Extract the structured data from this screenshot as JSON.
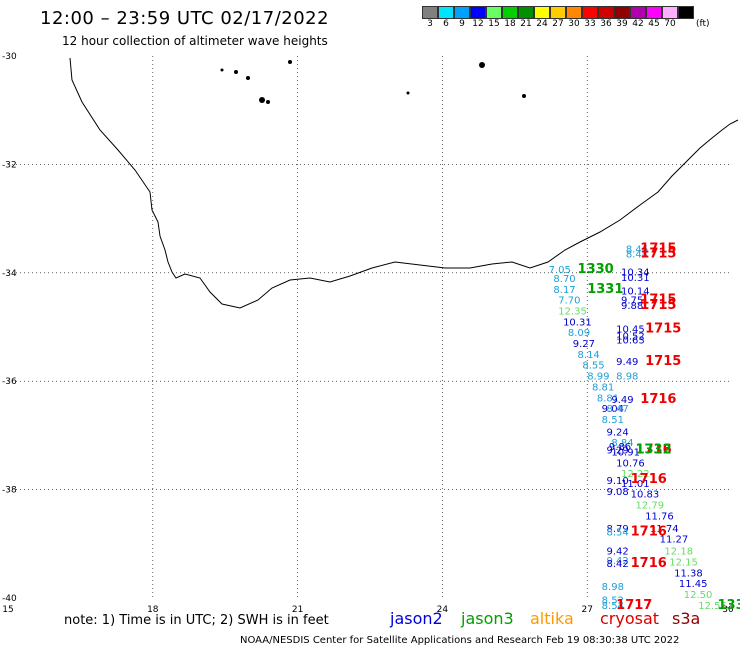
{
  "title": "12:00 – 23:59 UTC 02/17/2022",
  "subtitle": "12 hour collection of altimeter wave heights",
  "legend": {
    "unit": "(ft)",
    "items": [
      {
        "label": "3",
        "color": "#808080"
      },
      {
        "label": "6",
        "color": "#00e5ff"
      },
      {
        "label": "9",
        "color": "#00a0ff"
      },
      {
        "label": "12",
        "color": "#0000ff"
      },
      {
        "label": "15",
        "color": "#66ff66"
      },
      {
        "label": "18",
        "color": "#00d000"
      },
      {
        "label": "21",
        "color": "#009000"
      },
      {
        "label": "24",
        "color": "#ffff00"
      },
      {
        "label": "27",
        "color": "#ffcc00"
      },
      {
        "label": "30",
        "color": "#ff8800"
      },
      {
        "label": "33",
        "color": "#ff0000"
      },
      {
        "label": "36",
        "color": "#d00000"
      },
      {
        "label": "39",
        "color": "#900000"
      },
      {
        "label": "42",
        "color": "#b000b0"
      },
      {
        "label": "45",
        "color": "#ff00ff"
      },
      {
        "label": "70",
        "color": "#ffb0ff"
      },
      {
        "label": "",
        "color": "#000000"
      }
    ]
  },
  "axes": {
    "lon_labels": [
      "15",
      "18",
      "21",
      "24",
      "27",
      "30"
    ],
    "lat_labels": [
      "-30",
      "-32",
      "-34",
      "-36",
      "-38",
      "-40"
    ]
  },
  "note": "note: 1) Time is in UTC; 2) SWH is in feet",
  "satellites": [
    {
      "name": "jason2",
      "color": "#0000dd"
    },
    {
      "name": "jason3",
      "color": "#00a000"
    },
    {
      "name": "altika",
      "color": "#ff9900"
    },
    {
      "name": "cryosat",
      "color": "#dd0000"
    },
    {
      "name": "s3a",
      "color": "#900000"
    }
  ],
  "credit": "NOAA/NESDIS Center for Satellite Applications and Research   Feb 19 08:30:38 UTC 2022",
  "colors": {
    "lightblue": "#1ea0d8",
    "blue": "#0000d0",
    "green": "#00a000",
    "lightgreen": "#66dd66",
    "red": "#ee0000"
  },
  "observations": [
    {
      "lon": 26.2,
      "lat": -34.0,
      "text": "7.05",
      "c": "lightblue"
    },
    {
      "lon": 26.3,
      "lat": -34.17,
      "text": "8.70",
      "c": "lightblue"
    },
    {
      "lon": 26.3,
      "lat": -34.37,
      "text": "8.17",
      "c": "lightblue"
    },
    {
      "lon": 26.4,
      "lat": -34.57,
      "text": "7.70",
      "c": "lightblue"
    },
    {
      "lon": 26.4,
      "lat": -34.77,
      "text": "12.35",
      "c": "lightgreen"
    },
    {
      "lon": 26.5,
      "lat": -34.97,
      "text": "10.31",
      "c": "blue"
    },
    {
      "lon": 26.6,
      "lat": -35.17,
      "text": "8.09",
      "c": "lightblue"
    },
    {
      "lon": 26.7,
      "lat": -35.37,
      "text": "9.27",
      "c": "blue"
    },
    {
      "lon": 26.8,
      "lat": -35.57,
      "text": "8.14",
      "c": "lightblue"
    },
    {
      "lon": 26.9,
      "lat": -35.77,
      "text": "8.55",
      "c": "lightblue"
    },
    {
      "lon": 27.0,
      "lat": -35.97,
      "text": "8.99",
      "c": "lightblue"
    },
    {
      "lon": 27.1,
      "lat": -36.17,
      "text": "8.81",
      "c": "lightblue"
    },
    {
      "lon": 27.2,
      "lat": -36.37,
      "text": "8.81",
      "c": "lightblue"
    },
    {
      "lon": 27.3,
      "lat": -36.57,
      "text": "9.04",
      "c": "blue"
    },
    {
      "lon": 27.4,
      "lat": -36.57,
      "text": "8.47",
      "c": "lightblue"
    },
    {
      "lon": 27.3,
      "lat": -36.77,
      "text": "8.51",
      "c": "lightblue"
    },
    {
      "lon": 27.4,
      "lat": -37.0,
      "text": "9.24",
      "c": "blue"
    },
    {
      "lon": 27.5,
      "lat": -37.2,
      "text": "8.84",
      "c": "lightblue"
    },
    {
      "lon": 27.45,
      "lat": -37.27,
      "text": "9.86",
      "c": "blue"
    },
    {
      "lon": 27.5,
      "lat": -37.37,
      "text": "10.91",
      "c": "blue"
    },
    {
      "lon": 27.6,
      "lat": -37.57,
      "text": "10.76",
      "c": "blue"
    },
    {
      "lon": 27.7,
      "lat": -37.77,
      "text": "12.22",
      "c": "lightgreen"
    },
    {
      "lon": 27.4,
      "lat": -37.9,
      "text": "9.10",
      "c": "blue"
    },
    {
      "lon": 27.4,
      "lat": -38.1,
      "text": "9.08",
      "c": "blue"
    },
    {
      "lon": 27.7,
      "lat": -37.95,
      "text": "11.01",
      "c": "blue"
    },
    {
      "lon": 27.9,
      "lat": -38.15,
      "text": "10.83",
      "c": "blue"
    },
    {
      "lon": 28.0,
      "lat": -38.35,
      "text": "12.79",
      "c": "lightgreen"
    },
    {
      "lon": 28.2,
      "lat": -38.55,
      "text": "11.76",
      "c": "blue"
    },
    {
      "lon": 27.4,
      "lat": -38.78,
      "text": "8.79",
      "c": "blue"
    },
    {
      "lon": 27.4,
      "lat": -38.85,
      "text": "8.54",
      "c": "lightblue"
    },
    {
      "lon": 28.3,
      "lat": -38.78,
      "text": "11.74",
      "c": "blue"
    },
    {
      "lon": 28.5,
      "lat": -38.98,
      "text": "11.27",
      "c": "blue"
    },
    {
      "lon": 27.4,
      "lat": -39.2,
      "text": "9.42",
      "c": "blue"
    },
    {
      "lon": 28.6,
      "lat": -39.2,
      "text": "12.18",
      "c": "lightgreen"
    },
    {
      "lon": 27.4,
      "lat": -39.37,
      "text": "9.42",
      "c": "lightblue"
    },
    {
      "lon": 27.4,
      "lat": -39.43,
      "text": "8.42",
      "c": "blue"
    },
    {
      "lon": 28.7,
      "lat": -39.4,
      "text": "12.15",
      "c": "lightgreen"
    },
    {
      "lon": 28.8,
      "lat": -39.6,
      "text": "11.38",
      "c": "blue"
    },
    {
      "lon": 28.9,
      "lat": -39.8,
      "text": "11.45",
      "c": "blue"
    },
    {
      "lon": 27.3,
      "lat": -39.85,
      "text": "8.98",
      "c": "lightblue"
    },
    {
      "lon": 29.0,
      "lat": -40.0,
      "text": "12.50",
      "c": "lightgreen"
    },
    {
      "lon": 27.3,
      "lat": -40.1,
      "text": "8.52",
      "c": "lightblue"
    },
    {
      "lon": 27.3,
      "lat": -40.2,
      "text": "8.54",
      "c": "lightblue"
    },
    {
      "lon": 29.3,
      "lat": -40.2,
      "text": "12.55",
      "c": "lightgreen"
    },
    {
      "lon": 27.8,
      "lat": -33.63,
      "text": "8.46",
      "c": "lightblue"
    },
    {
      "lon": 27.8,
      "lat": -33.72,
      "text": "8.44",
      "c": "lightblue"
    },
    {
      "lon": 27.7,
      "lat": -34.05,
      "text": "10.34",
      "c": "blue"
    },
    {
      "lon": 27.7,
      "lat": -34.15,
      "text": "10.31",
      "c": "blue"
    },
    {
      "lon": 27.7,
      "lat": -34.4,
      "text": "10.14",
      "c": "blue"
    },
    {
      "lon": 27.7,
      "lat": -34.57,
      "text": "9.75",
      "c": "blue"
    },
    {
      "lon": 27.7,
      "lat": -34.67,
      "text": "9.88",
      "c": "blue"
    },
    {
      "lon": 27.6,
      "lat": -35.1,
      "text": "10.45",
      "c": "blue"
    },
    {
      "lon": 27.6,
      "lat": -35.23,
      "text": "10.52",
      "c": "blue"
    },
    {
      "lon": 27.6,
      "lat": -35.3,
      "text": "10.63",
      "c": "blue"
    },
    {
      "lon": 27.6,
      "lat": -35.7,
      "text": "9.49",
      "c": "blue"
    },
    {
      "lon": 27.6,
      "lat": -35.97,
      "text": "8.98",
      "c": "lightblue"
    },
    {
      "lon": 27.5,
      "lat": -36.4,
      "text": "9.49",
      "c": "blue"
    },
    {
      "lon": 27.4,
      "lat": -37.33,
      "text": "9.29",
      "c": "blue"
    },
    {
      "lon": 28.1,
      "lat": -33.63,
      "text": "1715",
      "c": "red",
      "big": true
    },
    {
      "lon": 28.1,
      "lat": -33.72,
      "text": "1715",
      "c": "red",
      "big": true
    },
    {
      "lon": 28.1,
      "lat": -34.57,
      "text": "1715",
      "c": "red",
      "big": true
    },
    {
      "lon": 28.1,
      "lat": -34.67,
      "text": "1715",
      "c": "red",
      "big": true
    },
    {
      "lon": 28.2,
      "lat": -35.1,
      "text": "1715",
      "c": "red",
      "big": true
    },
    {
      "lon": 28.2,
      "lat": -35.7,
      "text": "1715",
      "c": "red",
      "big": true
    },
    {
      "lon": 28.1,
      "lat": -36.4,
      "text": "1716",
      "c": "red",
      "big": true
    },
    {
      "lon": 28.0,
      "lat": -37.33,
      "text": "1716",
      "c": "red",
      "big": true
    },
    {
      "lon": 28.0,
      "lat": -37.33,
      "text": "1332",
      "c": "green",
      "big": true
    },
    {
      "lon": 27.9,
      "lat": -37.88,
      "text": "1716",
      "c": "red",
      "big": true
    },
    {
      "lon": 27.9,
      "lat": -38.85,
      "text": "1716",
      "c": "red",
      "big": true
    },
    {
      "lon": 27.9,
      "lat": -39.43,
      "text": "1716",
      "c": "red",
      "big": true
    },
    {
      "lon": 27.6,
      "lat": -40.2,
      "text": "1717",
      "c": "red",
      "big": true
    },
    {
      "lon": 26.8,
      "lat": -34.0,
      "text": "1330",
      "c": "green",
      "big": true
    },
    {
      "lon": 27.0,
      "lat": -34.37,
      "text": "1331",
      "c": "green",
      "big": true
    },
    {
      "lon": 29.7,
      "lat": -40.2,
      "text": "133",
      "c": "green",
      "big": true
    }
  ]
}
